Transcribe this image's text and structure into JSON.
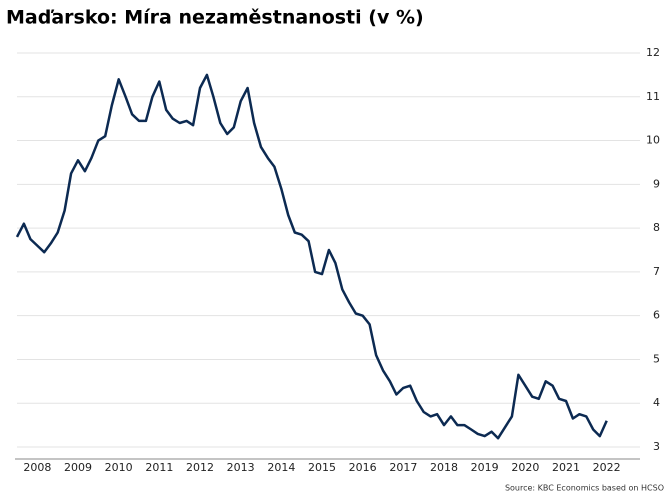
{
  "chart_data": {
    "type": "line",
    "title": "Maďarsko: Míra nezaměstnanosti (v %)",
    "source": "Source: KBC Economics based on HCSO",
    "x": [
      2008,
      2008.17,
      2008.33,
      2008.5,
      2008.67,
      2008.83,
      2009,
      2009.17,
      2009.33,
      2009.5,
      2009.67,
      2009.83,
      2010,
      2010.17,
      2010.33,
      2010.5,
      2010.67,
      2010.83,
      2011,
      2011.17,
      2011.33,
      2011.5,
      2011.67,
      2011.83,
      2012,
      2012.17,
      2012.33,
      2012.5,
      2012.67,
      2012.83,
      2013,
      2013.17,
      2013.33,
      2013.5,
      2013.67,
      2013.83,
      2014,
      2014.17,
      2014.33,
      2014.5,
      2014.67,
      2014.83,
      2015,
      2015.17,
      2015.33,
      2015.5,
      2015.67,
      2015.83,
      2016,
      2016.17,
      2016.33,
      2016.5,
      2016.67,
      2016.83,
      2017,
      2017.17,
      2017.33,
      2017.5,
      2017.67,
      2017.83,
      2018,
      2018.17,
      2018.33,
      2018.5,
      2018.67,
      2018.83,
      2019,
      2019.17,
      2019.33,
      2019.5,
      2019.67,
      2019.83,
      2020,
      2020.17,
      2020.33,
      2020.5,
      2020.67,
      2020.83,
      2021,
      2021.17,
      2021.33,
      2021.5,
      2021.67,
      2021.83,
      2022,
      2022.17,
      2022.33,
      2022.5
    ],
    "series": [
      {
        "color": "#0c2a52",
        "values": [
          7.8,
          8.1,
          7.75,
          7.6,
          7.45,
          7.65,
          7.9,
          8.4,
          9.25,
          9.55,
          9.3,
          9.6,
          10.0,
          10.1,
          10.8,
          11.4,
          11.0,
          10.6,
          10.45,
          10.45,
          11.0,
          11.35,
          10.7,
          10.5,
          10.4,
          10.45,
          10.35,
          11.2,
          11.5,
          11.0,
          10.4,
          10.15,
          10.3,
          10.9,
          11.2,
          10.4,
          9.85,
          9.6,
          9.4,
          8.9,
          8.3,
          7.9,
          7.85,
          7.7,
          7.0,
          6.95,
          7.5,
          7.2,
          6.6,
          6.3,
          6.05,
          6.0,
          5.8,
          5.1,
          4.75,
          4.5,
          4.2,
          4.35,
          4.4,
          4.05,
          3.8,
          3.7,
          3.75,
          3.5,
          3.7,
          3.5,
          3.5,
          3.4,
          3.3,
          3.25,
          3.35,
          3.2,
          3.45,
          3.7,
          4.65,
          4.4,
          4.15,
          4.1,
          4.5,
          4.4,
          4.1,
          4.05,
          3.65,
          3.75,
          3.7,
          3.4,
          3.25,
          3.6
        ]
      }
    ],
    "xlim": [
      2008,
      2023
    ],
    "xticks": [
      {
        "value": 2008.5,
        "label": "2008"
      },
      {
        "value": 2009.5,
        "label": "2009"
      },
      {
        "value": 2010.5,
        "label": "2010"
      },
      {
        "value": 2011.5,
        "label": "2011"
      },
      {
        "value": 2012.5,
        "label": "2012"
      },
      {
        "value": 2013.5,
        "label": "2013"
      },
      {
        "value": 2014.5,
        "label": "2014"
      },
      {
        "value": 2015.5,
        "label": "2015"
      },
      {
        "value": 2016.5,
        "label": "2016"
      },
      {
        "value": 2017.5,
        "label": "2017"
      },
      {
        "value": 2018.5,
        "label": "2018"
      },
      {
        "value": 2019.5,
        "label": "2019"
      },
      {
        "value": 2020.5,
        "label": "2020"
      },
      {
        "value": 2021.5,
        "label": "2021"
      },
      {
        "value": 2022.5,
        "label": "2022"
      }
    ],
    "ylim": [
      3,
      12
    ],
    "yticks": [
      3,
      4,
      5,
      6,
      7,
      8,
      9,
      10,
      11,
      12
    ],
    "grid": true
  }
}
